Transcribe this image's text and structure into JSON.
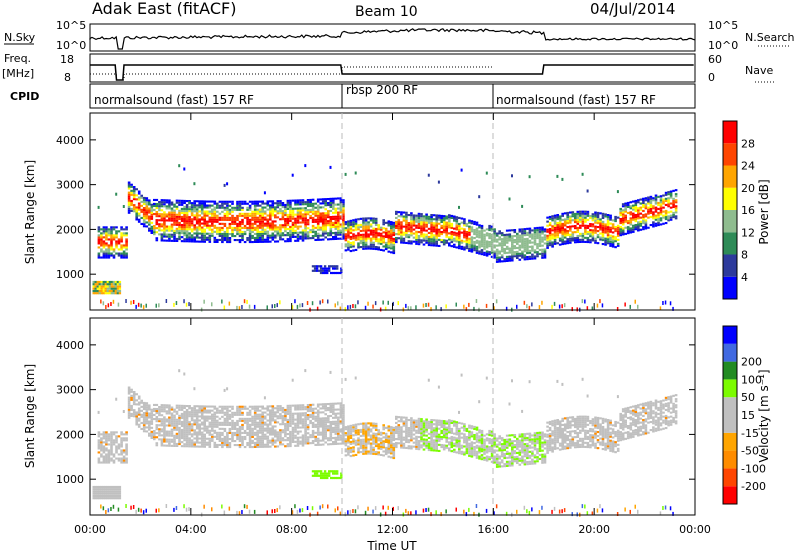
{
  "header": {
    "station": "Adak East (fitACF)",
    "beam": "Beam 10",
    "date": "04/Jul/2014"
  },
  "strip_labels": {
    "nsky": "N.Sky",
    "nsky_ticks": [
      "10^5",
      "10^0"
    ],
    "nsearch": "N.Search",
    "nsearch_ticks": [
      "10^5",
      "10^0"
    ],
    "freq": "Freq.",
    "freq_unit": "[MHz]",
    "freq_ticks": [
      "18",
      "8"
    ],
    "nave": "Nave",
    "nave_ticks": [
      "60",
      "0"
    ],
    "cpid": "CPID"
  },
  "cpid_segments": [
    {
      "start_h": 0,
      "end_h": 10,
      "label": "normalsound (fast) 157 RF"
    },
    {
      "start_h": 10,
      "end_h": 16,
      "label": "rbsp 200 RF"
    },
    {
      "start_h": 16,
      "end_h": 24,
      "label": "normalsound (fast) 157 RF"
    }
  ],
  "colors": {
    "power": [
      "#0000ff",
      "#2d3a9c",
      "#2e8b57",
      "#8fbc8f",
      "#ffff00",
      "#ffa500",
      "#ff4500",
      "#ff0000"
    ],
    "velocity": [
      "#ff0000",
      "#ff4500",
      "#ff8c00",
      "#ffa500",
      "#c0c0c0",
      "#c0c0c0",
      "#7cfc00",
      "#228b22",
      "#4169e1",
      "#0000ff"
    ]
  },
  "chart_data": [
    {
      "type": "heatmap",
      "name": "power",
      "ylabel": "Slant Range [km]",
      "xlabel": "",
      "ylim": [
        200,
        4600
      ],
      "yticks": [
        "1000",
        "2000",
        "3000",
        "4000"
      ],
      "colorbar_label": "Power [dB]",
      "colorbar_ticks": [
        "4",
        "8",
        "12",
        "16",
        "20",
        "24",
        "28"
      ],
      "grid": false
    },
    {
      "type": "heatmap",
      "name": "velocity",
      "ylabel": "Slant Range [km]",
      "xlabel": "Time UT",
      "ylim": [
        200,
        4600
      ],
      "yticks": [
        "1000",
        "2000",
        "3000",
        "4000"
      ],
      "xticks": [
        "00:00",
        "04:00",
        "08:00",
        "12:00",
        "16:00",
        "20:00",
        "00:00"
      ],
      "colorbar_label": "Velocity [m s⁻¹]",
      "colorbar_ticks": [
        "-200",
        "-100",
        "-50",
        "-15",
        "15",
        "50",
        "100",
        "200"
      ],
      "grid": false
    }
  ]
}
